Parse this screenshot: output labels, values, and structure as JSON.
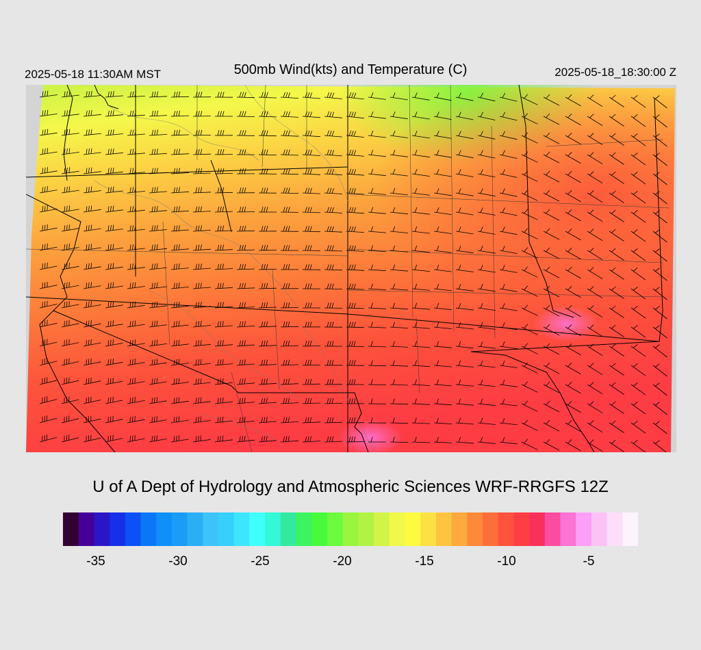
{
  "header": {
    "local_time": "2025-05-18 11:30AM MST",
    "title": "500mb Wind(kts) and Temperature (C)",
    "utc_time": "2025-05-18_18:30:00 Z"
  },
  "credit": "U of A Dept of Hydrology and Atmospheric Sciences WRF-RRGFS 12Z",
  "colorbar": {
    "colors": [
      "#330033",
      "#440099",
      "#2a16c6",
      "#1530e8",
      "#0a52f6",
      "#0b77f8",
      "#0f8ff8",
      "#1a9cf7",
      "#2aaef6",
      "#3cc4fa",
      "#35d0fb",
      "#3ee6fd",
      "#40ffff",
      "#34f8d6",
      "#33e9a0",
      "#3bf45f",
      "#47fb3c",
      "#6cfb3d",
      "#99f53f",
      "#b2f245",
      "#d2f448",
      "#f0f84a",
      "#fefa40",
      "#fce144",
      "#fcc43f",
      "#fda93d",
      "#fd8a39",
      "#fd6f3a",
      "#fd523c",
      "#fd3e42",
      "#f9305b",
      "#fc4ca0",
      "#fc73d3",
      "#fc9ff8",
      "#fcc2f6",
      "#fcddfa",
      "#fcf3fc"
    ],
    "ticks": [
      {
        "label": "-35",
        "value": -35
      },
      {
        "label": "-30",
        "value": -30
      },
      {
        "label": "-25",
        "value": -25
      },
      {
        "label": "-20",
        "value": -20
      },
      {
        "label": "-15",
        "value": -15
      },
      {
        "label": "-10",
        "value": -10
      },
      {
        "label": "-5",
        "value": -5
      }
    ],
    "range": [
      -37,
      -2
    ]
  }
}
